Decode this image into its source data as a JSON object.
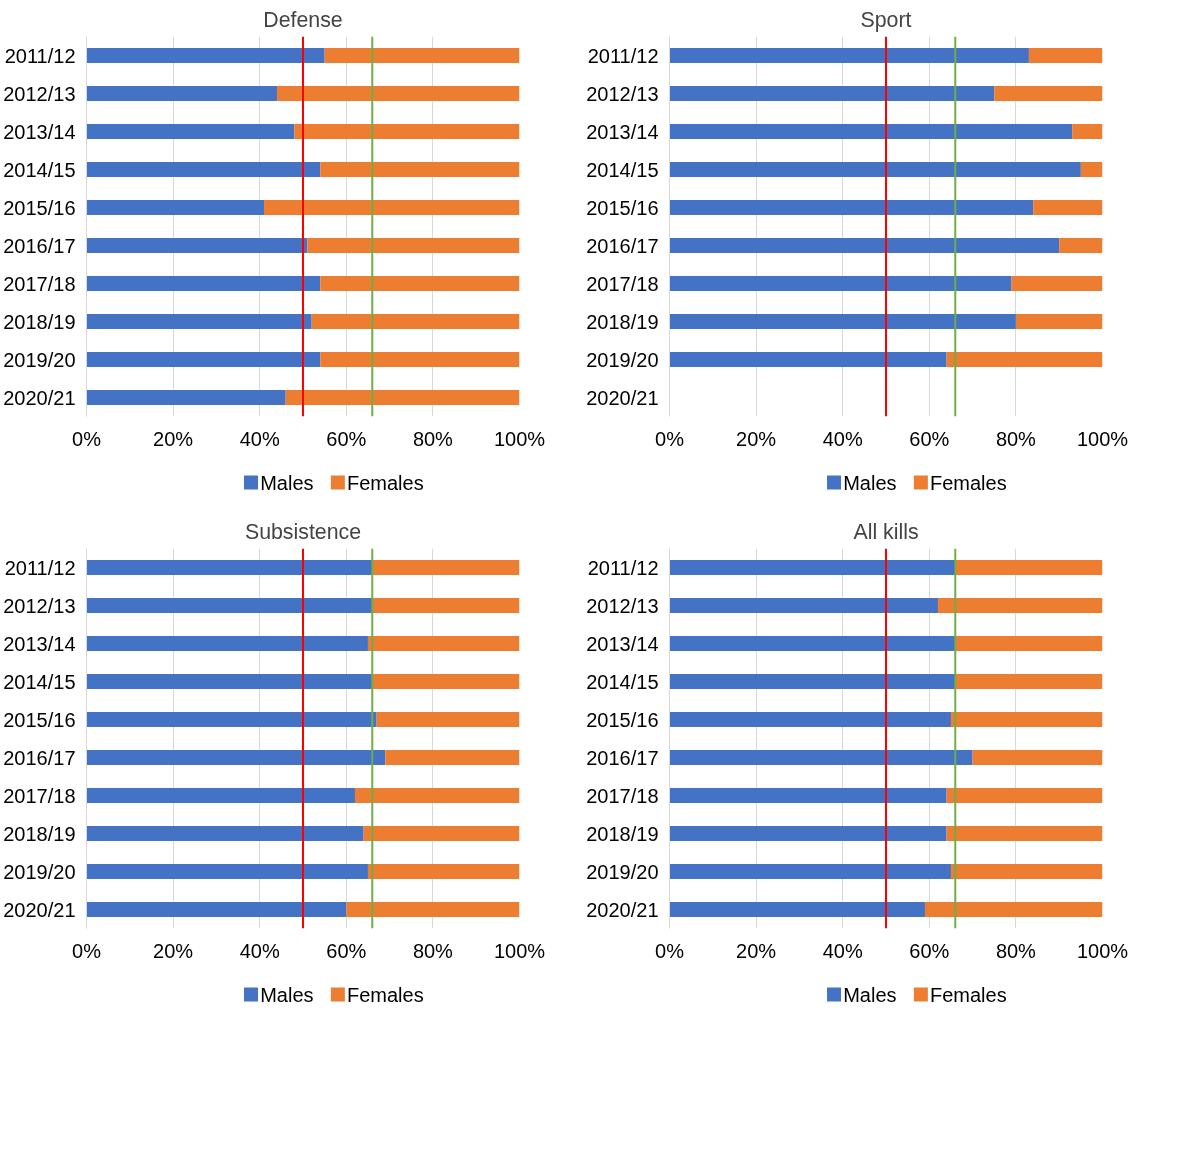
{
  "chart_data": [
    {
      "type": "bar",
      "orientation": "horizontal",
      "stacked": true,
      "title": "Defense",
      "categories": [
        "2011/12",
        "2012/13",
        "2013/14",
        "2014/15",
        "2015/16",
        "2016/17",
        "2017/18",
        "2018/19",
        "2019/20",
        "2020/21"
      ],
      "series": [
        {
          "name": "Males",
          "color": "#4472c4",
          "values": [
            55,
            44,
            48,
            54,
            41,
            51,
            54,
            52,
            54,
            46
          ]
        },
        {
          "name": "Females",
          "color": "#ed7d31",
          "values": [
            45,
            56,
            52,
            46,
            59,
            49,
            46,
            48,
            46,
            54
          ]
        }
      ],
      "xlim": [
        0,
        100
      ],
      "xticks": [
        {
          "value": 0,
          "label": "0%"
        },
        {
          "value": 20,
          "label": "20%"
        },
        {
          "value": 40,
          "label": "40%"
        },
        {
          "value": 60,
          "label": "60%"
        },
        {
          "value": 80,
          "label": "80%"
        },
        {
          "value": 100,
          "label": "100%"
        }
      ],
      "grid": "x",
      "legend": "bottom",
      "ref_lines": [
        {
          "axis": "x",
          "value": 50,
          "color": "#ff0000"
        },
        {
          "axis": "x",
          "value": 66,
          "color": "#70ad47"
        }
      ]
    },
    {
      "type": "bar",
      "orientation": "horizontal",
      "stacked": true,
      "title": "Sport",
      "categories": [
        "2011/12",
        "2012/13",
        "2013/14",
        "2014/15",
        "2015/16",
        "2016/17",
        "2017/18",
        "2018/19",
        "2019/20",
        "2020/21"
      ],
      "series": [
        {
          "name": "Males",
          "color": "#4472c4",
          "values": [
            83,
            75,
            93,
            95,
            84,
            90,
            79,
            80,
            64,
            null
          ]
        },
        {
          "name": "Females",
          "color": "#ed7d31",
          "values": [
            17,
            25,
            7,
            5,
            16,
            10,
            21,
            20,
            36,
            null
          ]
        }
      ],
      "xlim": [
        0,
        100
      ],
      "xticks": [
        {
          "value": 0,
          "label": "0%"
        },
        {
          "value": 20,
          "label": "20%"
        },
        {
          "value": 40,
          "label": "40%"
        },
        {
          "value": 60,
          "label": "60%"
        },
        {
          "value": 80,
          "label": "80%"
        },
        {
          "value": 100,
          "label": "100%"
        }
      ],
      "grid": "x",
      "legend": "bottom",
      "ref_lines": [
        {
          "axis": "x",
          "value": 50,
          "color": "#ff0000"
        },
        {
          "axis": "x",
          "value": 66,
          "color": "#70ad47"
        }
      ]
    },
    {
      "type": "bar",
      "orientation": "horizontal",
      "stacked": true,
      "title": "Subsistence",
      "categories": [
        "2011/12",
        "2012/13",
        "2013/14",
        "2014/15",
        "2015/16",
        "2016/17",
        "2017/18",
        "2018/19",
        "2019/20",
        "2020/21"
      ],
      "series": [
        {
          "name": "Males",
          "color": "#4472c4",
          "values": [
            66,
            66,
            65,
            66,
            67,
            69,
            62,
            64,
            65,
            60
          ]
        },
        {
          "name": "Females",
          "color": "#ed7d31",
          "values": [
            34,
            34,
            35,
            34,
            33,
            31,
            38,
            36,
            35,
            40
          ]
        }
      ],
      "xlim": [
        0,
        100
      ],
      "xticks": [
        {
          "value": 0,
          "label": "0%"
        },
        {
          "value": 20,
          "label": "20%"
        },
        {
          "value": 40,
          "label": "40%"
        },
        {
          "value": 60,
          "label": "60%"
        },
        {
          "value": 80,
          "label": "80%"
        },
        {
          "value": 100,
          "label": "100%"
        }
      ],
      "grid": "x",
      "legend": "bottom",
      "ref_lines": [
        {
          "axis": "x",
          "value": 50,
          "color": "#ff0000"
        },
        {
          "axis": "x",
          "value": 66,
          "color": "#70ad47"
        }
      ]
    },
    {
      "type": "bar",
      "orientation": "horizontal",
      "stacked": true,
      "title": "All kills",
      "categories": [
        "2011/12",
        "2012/13",
        "2013/14",
        "2014/15",
        "2015/16",
        "2016/17",
        "2017/18",
        "2018/19",
        "2019/20",
        "2020/21"
      ],
      "series": [
        {
          "name": "Males",
          "color": "#4472c4",
          "values": [
            66,
            62,
            66,
            66,
            65,
            70,
            64,
            64,
            65,
            59
          ]
        },
        {
          "name": "Females",
          "color": "#ed7d31",
          "values": [
            34,
            38,
            34,
            34,
            35,
            30,
            36,
            36,
            35,
            41
          ]
        }
      ],
      "xlim": [
        0,
        100
      ],
      "xticks": [
        {
          "value": 0,
          "label": "0%"
        },
        {
          "value": 20,
          "label": "20%"
        },
        {
          "value": 40,
          "label": "40%"
        },
        {
          "value": 60,
          "label": "60%"
        },
        {
          "value": 80,
          "label": "80%"
        },
        {
          "value": 100,
          "label": "100%"
        }
      ],
      "grid": "x",
      "legend": "bottom",
      "ref_lines": [
        {
          "axis": "x",
          "value": 50,
          "color": "#ff0000"
        },
        {
          "axis": "x",
          "value": 66,
          "color": "#70ad47"
        }
      ]
    }
  ]
}
